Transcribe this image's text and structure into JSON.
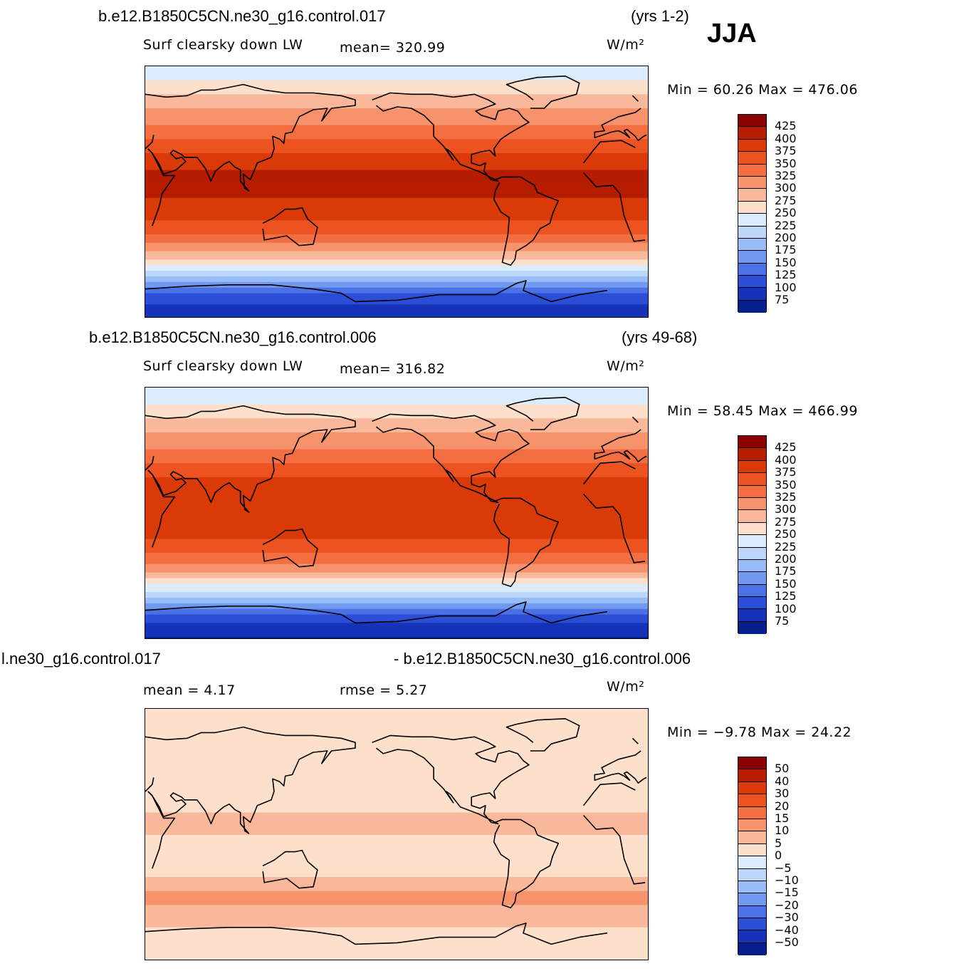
{
  "season": "JJA",
  "panels": [
    {
      "case_name": "b.e12.B1850C5CN.ne30_g16.control.017",
      "years": "(yrs 1-2)",
      "variable": "Surf clearsky down LW",
      "stat1": "mean= 320.99",
      "stat2": "",
      "units": "W/m²",
      "minmax": "Min =   60.26  Max  =  476.06"
    },
    {
      "case_name": "b.e12.B1850C5CN.ne30_g16.control.006",
      "years": "(yrs 49-68)",
      "variable": "Surf clearsky down LW",
      "stat1": "mean= 316.82",
      "stat2": "",
      "units": "W/m²",
      "minmax": "Min =   58.45  Max  =  466.99"
    },
    {
      "case_name": "l.ne30_g16.control.017",
      "years": "- b.e12.B1850C5CN.ne30_g16.control.006",
      "variable": "",
      "stat1": "mean =     4.17",
      "stat2": "rmse =     5.27",
      "units": "W/m²",
      "minmax": "Min =  −9.78  Max  =   24.22"
    }
  ],
  "chart_data": [
    {
      "type": "heatmap",
      "title": "Surf clearsky down LW",
      "case": "b.e12.B1850C5CN.ne30_g16.control.017",
      "period": "(yrs 1-2)",
      "mean": 320.99,
      "min": 60.26,
      "max": 476.06,
      "units": "W/m²",
      "colorbar_levels": [
        "425",
        "400",
        "375",
        "350",
        "325",
        "300",
        "275",
        "250",
        "225",
        "200",
        "175",
        "150",
        "125",
        "100",
        "75"
      ],
      "colorbar_colors": [
        "#8b0000",
        "#b51c00",
        "#d93a08",
        "#ec5320",
        "#f36f42",
        "#f7936c",
        "#fab89a",
        "#fde0cc",
        "#dbecfb",
        "#bcd6fa",
        "#98bcf7",
        "#7299f0",
        "#4a72e6",
        "#2a4ed5",
        "#1533b8",
        "#061f8c"
      ],
      "zonal_profile_lat": [
        -90,
        -75,
        -60,
        -45,
        -30,
        -15,
        0,
        15,
        30,
        45,
        60,
        75,
        90
      ],
      "zonal_profile_value": [
        75,
        110,
        200,
        290,
        350,
        385,
        405,
        400,
        370,
        330,
        300,
        260,
        230
      ]
    },
    {
      "type": "heatmap",
      "title": "Surf clearsky down LW",
      "case": "b.e12.B1850C5CN.ne30_g16.control.006",
      "period": "(yrs 49-68)",
      "mean": 316.82,
      "min": 58.45,
      "max": 466.99,
      "units": "W/m²",
      "colorbar_levels": [
        "425",
        "400",
        "375",
        "350",
        "325",
        "300",
        "275",
        "250",
        "225",
        "200",
        "175",
        "150",
        "125",
        "100",
        "75"
      ],
      "colorbar_colors": [
        "#8b0000",
        "#b51c00",
        "#d93a08",
        "#ec5320",
        "#f36f42",
        "#f7936c",
        "#fab89a",
        "#fde0cc",
        "#dbecfb",
        "#bcd6fa",
        "#98bcf7",
        "#7299f0",
        "#4a72e6",
        "#2a4ed5",
        "#1533b8",
        "#061f8c"
      ],
      "zonal_profile_lat": [
        -90,
        -75,
        -60,
        -45,
        -30,
        -15,
        0,
        15,
        30,
        45,
        60,
        75,
        90
      ],
      "zonal_profile_value": [
        72,
        105,
        195,
        285,
        345,
        380,
        400,
        395,
        365,
        325,
        295,
        255,
        225
      ]
    },
    {
      "type": "heatmap",
      "title": "",
      "case": "l.ne30_g16.control.017",
      "period": "- b.e12.B1850C5CN.ne30_g16.control.006",
      "mean": 4.17,
      "rmse": 5.27,
      "min": -9.78,
      "max": 24.22,
      "units": "W/m²",
      "colorbar_levels": [
        "50",
        "40",
        "30",
        "20",
        "15",
        "10",
        "5",
        "0",
        "−5",
        "−10",
        "−15",
        "−20",
        "−30",
        "−40",
        "−50"
      ],
      "colorbar_colors": [
        "#8b0000",
        "#b51c00",
        "#d93a08",
        "#ec5320",
        "#f36f42",
        "#f7936c",
        "#fab89a",
        "#fde0cc",
        "#dbecfb",
        "#bcd6fa",
        "#98bcf7",
        "#7299f0",
        "#4a72e6",
        "#2a4ed5",
        "#1533b8",
        "#061f8c"
      ],
      "zonal_profile_lat": [
        -90,
        -75,
        -60,
        -45,
        -30,
        -15,
        0,
        15,
        30,
        45,
        60,
        75,
        90
      ],
      "zonal_profile_value": [
        4,
        3,
        6,
        12,
        5,
        4,
        5,
        5,
        4,
        3,
        2,
        1,
        2
      ]
    }
  ]
}
